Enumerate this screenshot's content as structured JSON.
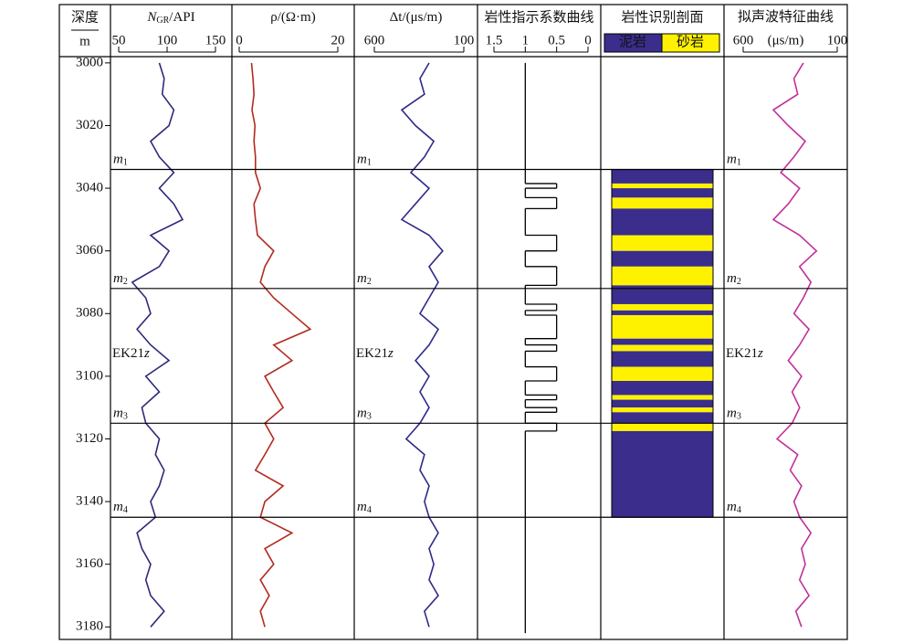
{
  "chart_data": {
    "type": "well-log",
    "depth_title": "深度",
    "depth_unit": "m",
    "ylim": [
      2998,
      3184
    ],
    "yticks": [
      3000,
      3020,
      3040,
      3060,
      3080,
      3100,
      3120,
      3140,
      3160,
      3180
    ],
    "depth": [
      3000,
      3005,
      3010,
      3015,
      3020,
      3025,
      3030,
      3035,
      3040,
      3045,
      3050,
      3055,
      3060,
      3065,
      3070,
      3075,
      3080,
      3085,
      3090,
      3095,
      3100,
      3105,
      3110,
      3115,
      3120,
      3125,
      3130,
      3135,
      3140,
      3145,
      3150,
      3155,
      3160,
      3165,
      3170,
      3175,
      3180
    ],
    "curves": [
      {
        "title": [
          "N",
          "GR",
          "/API"
        ],
        "xlim": [
          50,
          150
        ],
        "xticks": [
          50,
          100,
          150
        ],
        "color": "#2e2a7a",
        "values": [
          92,
          97,
          95,
          107,
          102,
          83,
          92,
          107,
          92,
          107,
          116,
          83,
          102,
          92,
          64,
          78,
          83,
          69,
          83,
          102,
          78,
          92,
          74,
          78,
          92,
          88,
          97,
          92,
          83,
          88,
          69,
          74,
          83,
          78,
          83,
          97,
          83
        ]
      },
      {
        "title": [
          "ρ/(Ω·m)"
        ],
        "xlim": [
          0,
          20
        ],
        "xticks": [
          0,
          20
        ],
        "color": "#b22a1e",
        "values": [
          2.5,
          2.8,
          3,
          2.6,
          3.2,
          3,
          3.3,
          3.3,
          4.3,
          3,
          3.3,
          3.7,
          7,
          5.2,
          4.3,
          7,
          10.7,
          14.4,
          7,
          10.7,
          5.2,
          7,
          8.9,
          5.2,
          7,
          5.2,
          3.3,
          8.9,
          5.2,
          4.3,
          10.7,
          5.2,
          7,
          4.3,
          6.1,
          4.3,
          5.2
        ]
      },
      {
        "title": [
          "Δt/(μs/m)"
        ],
        "xlim": [
          600,
          100
        ],
        "xticks": [
          600,
          100
        ],
        "color": "#2e2a8a",
        "values": [
          294,
          345,
          320,
          447,
          370,
          268,
          320,
          396,
          294,
          370,
          447,
          294,
          218,
          294,
          243,
          294,
          345,
          243,
          294,
          370,
          294,
          345,
          294,
          345,
          422,
          320,
          345,
          294,
          320,
          294,
          243,
          294,
          268,
          294,
          243,
          320,
          294
        ]
      },
      {
        "title": [
          "拟声波特征曲线"
        ],
        "unit": "(μs/m)",
        "xlim": [
          600,
          100
        ],
        "xticks": [
          600,
          100
        ],
        "color": "#c0309a",
        "values": [
          280,
          330,
          310,
          440,
          360,
          270,
          330,
          400,
          300,
          360,
          440,
          300,
          210,
          300,
          240,
          280,
          330,
          250,
          300,
          360,
          290,
          340,
          300,
          340,
          420,
          310,
          350,
          290,
          330,
          300,
          240,
          290,
          270,
          300,
          250,
          320,
          290
        ]
      }
    ],
    "indicator": {
      "title": "岩性指示系数曲线",
      "xlim": [
        1.5,
        0
      ],
      "xticks": [
        1.5,
        1,
        0.5,
        0
      ],
      "color": "#000000",
      "segments": [
        [
          3000,
          3038.5,
          1
        ],
        [
          3038.5,
          3040,
          0.5
        ],
        [
          3040,
          3043,
          1
        ],
        [
          3043,
          3046.5,
          0.5
        ],
        [
          3046.5,
          3055,
          1
        ],
        [
          3055,
          3060,
          0.5
        ],
        [
          3060,
          3065,
          1
        ],
        [
          3065,
          3071,
          0.5
        ],
        [
          3071,
          3077,
          1
        ],
        [
          3077,
          3079,
          0.5
        ],
        [
          3079,
          3080.5,
          1
        ],
        [
          3080.5,
          3088,
          0.5
        ],
        [
          3088,
          3090,
          1
        ],
        [
          3090,
          3092,
          0.5
        ],
        [
          3092,
          3097,
          1
        ],
        [
          3097,
          3101.5,
          0.5
        ],
        [
          3101.5,
          3106,
          1
        ],
        [
          3106,
          3107.5,
          0.5
        ],
        [
          3107.5,
          3110,
          1
        ],
        [
          3110,
          3111.5,
          0.5
        ],
        [
          3111.5,
          3115,
          1
        ],
        [
          3115,
          3117.5,
          0.5
        ],
        [
          3117.5,
          3182,
          1
        ]
      ]
    },
    "lithology": {
      "title": "岩性识别剖面",
      "section": [
        3034,
        3145
      ],
      "legend": [
        {
          "name": "泥岩",
          "color": "#3a2d8c",
          "value": 1
        },
        {
          "name": "砂岩",
          "color": "#fff200",
          "value": 0.5
        }
      ]
    },
    "zones": [
      {
        "depth": 3034,
        "name": "m",
        "sub": "1"
      },
      {
        "depth": 3072,
        "name": "m",
        "sub": "2"
      },
      {
        "depth": 3115,
        "name": "m",
        "sub": "3"
      },
      {
        "depth": 3145,
        "name": "m",
        "sub": "4"
      }
    ],
    "formation": {
      "depth": 3093,
      "name": "EK21",
      "suffix": "z"
    }
  }
}
